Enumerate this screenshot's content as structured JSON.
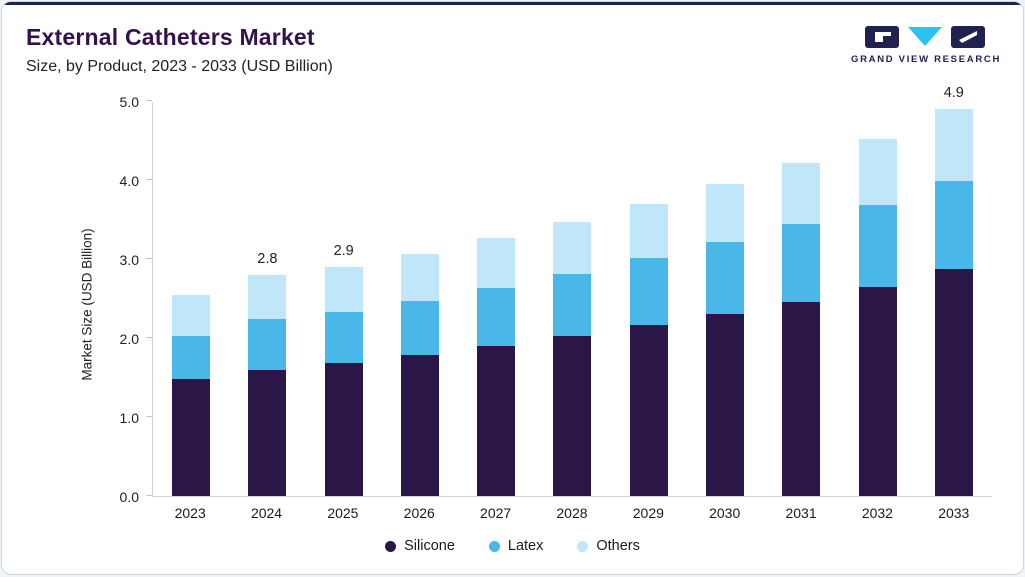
{
  "header": {
    "title": "External Catheters Market",
    "subtitle": "Size, by Product, 2023 - 2033 (USD Billion)"
  },
  "logo": {
    "text": "GRAND VIEW RESEARCH",
    "colors": {
      "dark": "#20214f",
      "cyan": "#2bc2ee"
    }
  },
  "chart_data": {
    "type": "bar",
    "stacked": true,
    "title": "External Catheters Market Size, by Product, 2023 - 2033 (USD Billion)",
    "categories": [
      "2023",
      "2024",
      "2025",
      "2026",
      "2027",
      "2028",
      "2029",
      "2030",
      "2031",
      "2032",
      "2033"
    ],
    "series": [
      {
        "name": "Silicone",
        "color": "#2a1647",
        "values": [
          1.48,
          1.6,
          1.68,
          1.78,
          1.9,
          2.02,
          2.16,
          2.3,
          2.46,
          2.64,
          2.87
        ]
      },
      {
        "name": "Latex",
        "color": "#49b8e8",
        "values": [
          0.55,
          0.64,
          0.65,
          0.69,
          0.73,
          0.79,
          0.85,
          0.91,
          0.98,
          1.05,
          1.12
        ]
      },
      {
        "name": "Others",
        "color": "#bfe6f9",
        "values": [
          0.52,
          0.56,
          0.57,
          0.6,
          0.63,
          0.66,
          0.69,
          0.74,
          0.78,
          0.83,
          0.91
        ]
      }
    ],
    "bar_total_labels": [
      "",
      "2.8",
      "2.9",
      "",
      "",
      "",
      "",
      "",
      "",
      "",
      "4.9"
    ],
    "xlabel": "",
    "ylabel": "Market Size (USD Billion)",
    "ylim": [
      0,
      5
    ],
    "yticks": [
      "0.0",
      "1.0",
      "2.0",
      "3.0",
      "4.0",
      "5.0"
    ],
    "grid": false,
    "legend_position": "bottom"
  },
  "legend": {
    "items": [
      {
        "label": "Silicone",
        "color": "#2a1647"
      },
      {
        "label": "Latex",
        "color": "#49b8e8"
      },
      {
        "label": "Others",
        "color": "#bfe6f9"
      }
    ]
  }
}
